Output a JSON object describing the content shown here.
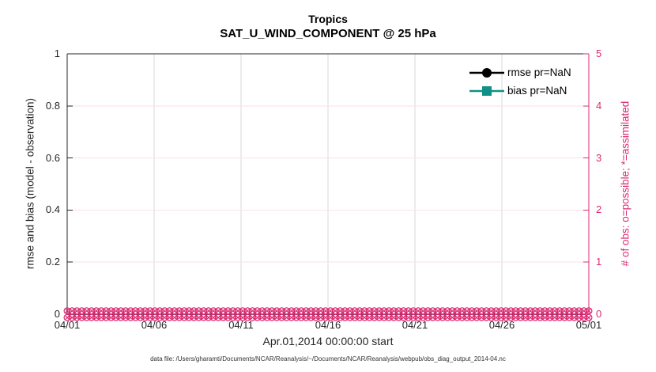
{
  "figure": {
    "footer": "data file: /Users/gharamti/Documents/NCAR/Reanalysis/~/Documents/NCAR/Reanalysis/webpub/obs_diag_output_2014-04.nc"
  },
  "chart_data": {
    "type": "line",
    "title": "Tropics",
    "subtitle": "SAT_U_WIND_COMPONENT @ 25 hPa",
    "xlabel": "Apr.01,2014 00:00:00 start",
    "x_ticks": [
      "04/01",
      "04/06",
      "04/11",
      "04/16",
      "04/21",
      "04/26",
      "05/01"
    ],
    "axis_color": "#262626",
    "grid": true,
    "v_grid_color": "#D9D9D9",
    "left_axis": {
      "ylabel": "rmse and bias (model - observation)",
      "ylim": [
        0,
        1
      ],
      "yticks": [
        0,
        0.2,
        0.4,
        0.6,
        0.8,
        1
      ],
      "color": "#262626"
    },
    "right_axis": {
      "ylabel": "# of obs: o=possible; *=assimilated",
      "ylim": [
        0,
        5
      ],
      "yticks": [
        0,
        1,
        2,
        3,
        4,
        5
      ],
      "color": "#DB2A72",
      "grid_color": "#F9DFEB"
    },
    "series": [
      {
        "name": "rmse",
        "legend_label": "rmse pr=NaN",
        "axis": "left",
        "marker": "filled-circle",
        "color": "#000000",
        "values": null,
        "note": "pr=NaN - no curve plotted"
      },
      {
        "name": "bias",
        "legend_label": "bias pr=NaN",
        "axis": "left",
        "marker": "filled-square",
        "color": "#0F918A",
        "values": null,
        "note": "pr=NaN - no curve plotted"
      },
      {
        "name": "possible-obs",
        "axis": "right",
        "marker": "open-circle",
        "color": "#DB2A72",
        "constant_value": 0,
        "n_points": 108
      },
      {
        "name": "assimilated-obs",
        "axis": "right",
        "marker": "cross",
        "color": "#DB2A72",
        "constant_value": 0,
        "n_points": 108
      }
    ],
    "legend": {
      "position": "upper-right-inside",
      "items": [
        {
          "label": "rmse pr=NaN",
          "color": "#000000",
          "marker": "filled-circle"
        },
        {
          "label": "bias pr=NaN",
          "color": "#0F918A",
          "marker": "filled-square"
        }
      ]
    }
  }
}
